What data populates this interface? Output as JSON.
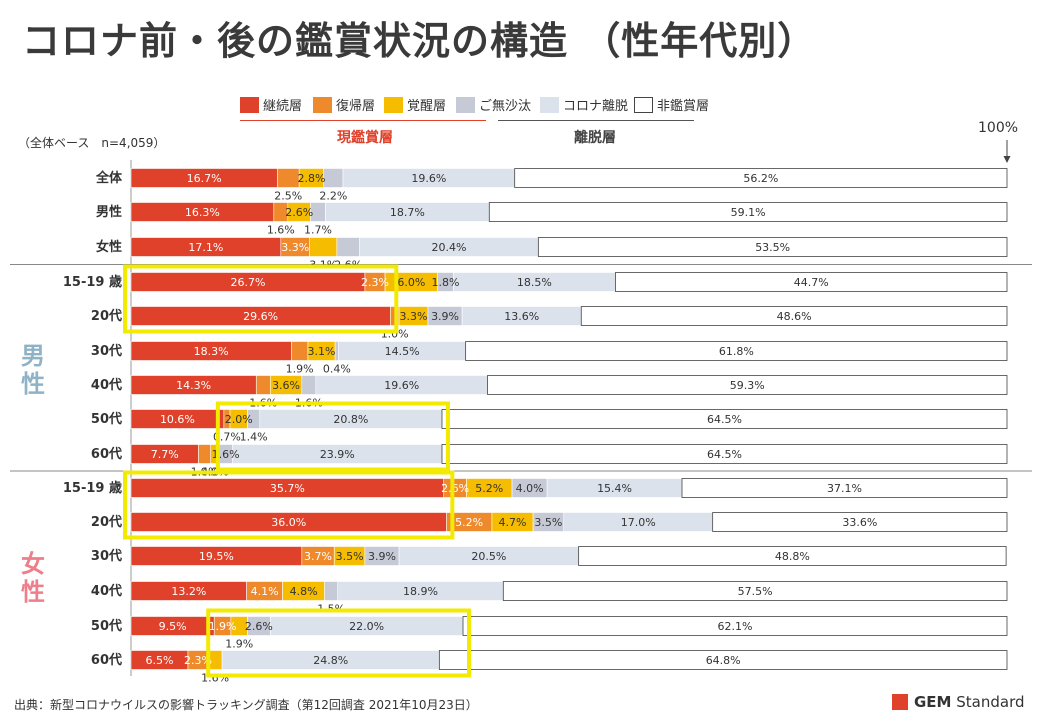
{
  "title": "コロナ前・後の鑑賞状況の構造 （性年代別）",
  "base_note": "（全体ベース　n=4,059）",
  "pct_100": "100%",
  "source": "出典：新型コロナウイルスの影響トラッキング調査（第12回調査 2021年10月23日）",
  "logo": {
    "mark": "GEM",
    "text": "Standard"
  },
  "gender_labels": {
    "male": "男性",
    "female": "女性"
  },
  "group_labels": {
    "current": "現鑑賞層",
    "departed": "離脱層"
  },
  "colors": {
    "継続層": "#e0412a",
    "復帰層": "#ee8a2c",
    "覚醒層": "#f5bc00",
    "ご無沙汰": "#c5cad6",
    "コロナ離脱": "#dbe2ec",
    "非鑑賞層": "#ffffff",
    "highlight": "#f2ea00"
  },
  "chart_data": {
    "type": "bar",
    "orientation": "horizontal",
    "stacked": true,
    "xlim": [
      0,
      100
    ],
    "unit": "%",
    "categories": [
      "全体",
      "男性",
      "女性",
      "15-19 歳",
      "20代",
      "30代",
      "40代",
      "50代",
      "60代",
      "15-19 歳",
      "20代",
      "30代",
      "40代",
      "50代",
      "60代"
    ],
    "series": [
      {
        "name": "継続層",
        "values": [
          16.7,
          16.3,
          17.1,
          26.7,
          29.6,
          18.3,
          14.3,
          10.6,
          7.7,
          35.7,
          36.0,
          19.5,
          13.2,
          9.5,
          6.5
        ]
      },
      {
        "name": "復帰層",
        "values": [
          2.5,
          1.6,
          3.3,
          2.3,
          1.0,
          1.9,
          1.6,
          0.7,
          1.4,
          2.6,
          5.2,
          3.7,
          4.1,
          1.9,
          2.3
        ]
      },
      {
        "name": "覚醒層",
        "values": [
          2.8,
          2.6,
          3.1,
          6.0,
          3.3,
          3.1,
          3.6,
          2.0,
          0.9,
          5.2,
          4.7,
          3.5,
          4.8,
          1.9,
          1.6
        ]
      },
      {
        "name": "ご無沙汰",
        "values": [
          2.2,
          1.7,
          2.6,
          1.8,
          3.9,
          0.4,
          1.6,
          1.4,
          1.6,
          4.0,
          3.5,
          3.9,
          1.5,
          2.6,
          0.0
        ]
      },
      {
        "name": "コロナ離脱",
        "values": [
          19.6,
          18.7,
          20.4,
          18.5,
          13.6,
          14.5,
          19.6,
          20.8,
          23.9,
          15.4,
          17.0,
          20.5,
          18.9,
          22.0,
          24.8
        ]
      },
      {
        "name": "非鑑賞層",
        "values": [
          56.2,
          59.1,
          53.5,
          44.7,
          48.6,
          61.8,
          59.3,
          64.5,
          64.5,
          37.1,
          33.6,
          48.8,
          57.5,
          62.1,
          64.8
        ]
      }
    ],
    "legend": [
      "継続層",
      "復帰層",
      "覚醒層",
      "ご無沙汰",
      "コロナ離脱",
      "非鑑賞層"
    ],
    "legend_position": "top",
    "labels": [
      {
        "row": 0,
        "series": 0,
        "text": "16.7%",
        "place": "in"
      },
      {
        "row": 0,
        "series": 1,
        "text": "2.5%",
        "place": "below"
      },
      {
        "row": 0,
        "series": 2,
        "text": "2.8%",
        "place": "in"
      },
      {
        "row": 0,
        "series": 3,
        "text": "2.2%",
        "place": "below"
      },
      {
        "row": 0,
        "series": 4,
        "text": "19.6%",
        "place": "in"
      },
      {
        "row": 0,
        "series": 5,
        "text": "56.2%",
        "place": "in"
      },
      {
        "row": 1,
        "series": 0,
        "text": "16.3%",
        "place": "in"
      },
      {
        "row": 1,
        "series": 1,
        "text": "1.6%",
        "place": "below"
      },
      {
        "row": 1,
        "series": 2,
        "text": "2.6%",
        "place": "in"
      },
      {
        "row": 1,
        "series": 3,
        "text": "1.7%",
        "place": "below"
      },
      {
        "row": 1,
        "series": 4,
        "text": "18.7%",
        "place": "in"
      },
      {
        "row": 1,
        "series": 5,
        "text": "59.1%",
        "place": "in"
      },
      {
        "row": 2,
        "series": 0,
        "text": "17.1%",
        "place": "in"
      },
      {
        "row": 2,
        "series": 1,
        "text": "3.3%",
        "place": "in"
      },
      {
        "row": 2,
        "series": 2,
        "text": "3.1%",
        "place": "below"
      },
      {
        "row": 2,
        "series": 3,
        "text": "2.6%",
        "place": "below"
      },
      {
        "row": 2,
        "series": 4,
        "text": "20.4%",
        "place": "in"
      },
      {
        "row": 2,
        "series": 5,
        "text": "53.5%",
        "place": "in"
      },
      {
        "row": 3,
        "series": 0,
        "text": "26.7%",
        "place": "in"
      },
      {
        "row": 3,
        "series": 1,
        "text": "2.3%",
        "place": "in"
      },
      {
        "row": 3,
        "series": 2,
        "text": "6.0%",
        "place": "in"
      },
      {
        "row": 3,
        "series": 3,
        "text": "1.8%",
        "place": "in"
      },
      {
        "row": 3,
        "series": 4,
        "text": "18.5%",
        "place": "in"
      },
      {
        "row": 3,
        "series": 5,
        "text": "44.7%",
        "place": "in"
      },
      {
        "row": 4,
        "series": 0,
        "text": "29.6%",
        "place": "in"
      },
      {
        "row": 4,
        "series": 1,
        "text": "1.0%",
        "place": "below"
      },
      {
        "row": 4,
        "series": 2,
        "text": "3.3%",
        "place": "in"
      },
      {
        "row": 4,
        "series": 3,
        "text": "3.9%",
        "place": "in"
      },
      {
        "row": 4,
        "series": 4,
        "text": "13.6%",
        "place": "in"
      },
      {
        "row": 4,
        "series": 5,
        "text": "48.6%",
        "place": "in"
      },
      {
        "row": 5,
        "series": 0,
        "text": "18.3%",
        "place": "in"
      },
      {
        "row": 5,
        "series": 1,
        "text": "1.9%",
        "place": "below"
      },
      {
        "row": 5,
        "series": 2,
        "text": "3.1%",
        "place": "in"
      },
      {
        "row": 5,
        "series": 3,
        "text": "0.4%",
        "place": "below"
      },
      {
        "row": 5,
        "series": 4,
        "text": "14.5%",
        "place": "in"
      },
      {
        "row": 5,
        "series": 5,
        "text": "61.8%",
        "place": "in"
      },
      {
        "row": 6,
        "series": 0,
        "text": "14.3%",
        "place": "in"
      },
      {
        "row": 6,
        "series": 1,
        "text": "1.6%",
        "place": "below"
      },
      {
        "row": 6,
        "series": 2,
        "text": "3.6%",
        "place": "in"
      },
      {
        "row": 6,
        "series": 3,
        "text": "1.6%",
        "place": "below"
      },
      {
        "row": 6,
        "series": 4,
        "text": "19.6%",
        "place": "in"
      },
      {
        "row": 6,
        "series": 5,
        "text": "59.3%",
        "place": "in"
      },
      {
        "row": 7,
        "series": 0,
        "text": "10.6%",
        "place": "in"
      },
      {
        "row": 7,
        "series": 1,
        "text": "0.7%",
        "place": "below"
      },
      {
        "row": 7,
        "series": 2,
        "text": "2.0%",
        "place": "in"
      },
      {
        "row": 7,
        "series": 3,
        "text": "1.4%",
        "place": "below"
      },
      {
        "row": 7,
        "series": 4,
        "text": "20.8%",
        "place": "in"
      },
      {
        "row": 7,
        "series": 5,
        "text": "64.5%",
        "place": "in"
      },
      {
        "row": 8,
        "series": 0,
        "text": "7.7%",
        "place": "in"
      },
      {
        "row": 8,
        "series": 1,
        "text": "1.4%",
        "place": "below"
      },
      {
        "row": 8,
        "series": 2,
        "text": "0.9%",
        "place": "below"
      },
      {
        "row": 8,
        "series": 3,
        "text": "1.6%",
        "place": "in"
      },
      {
        "row": 8,
        "series": 4,
        "text": "23.9%",
        "place": "in"
      },
      {
        "row": 8,
        "series": 5,
        "text": "64.5%",
        "place": "in"
      },
      {
        "row": 9,
        "series": 0,
        "text": "35.7%",
        "place": "in"
      },
      {
        "row": 9,
        "series": 1,
        "text": "2.6%",
        "place": "in"
      },
      {
        "row": 9,
        "series": 2,
        "text": "5.2%",
        "place": "in"
      },
      {
        "row": 9,
        "series": 3,
        "text": "4.0%",
        "place": "in"
      },
      {
        "row": 9,
        "series": 4,
        "text": "15.4%",
        "place": "in"
      },
      {
        "row": 9,
        "series": 5,
        "text": "37.1%",
        "place": "in"
      },
      {
        "row": 10,
        "series": 0,
        "text": "36.0%",
        "place": "in"
      },
      {
        "row": 10,
        "series": 1,
        "text": "5.2%",
        "place": "in"
      },
      {
        "row": 10,
        "series": 2,
        "text": "4.7%",
        "place": "in"
      },
      {
        "row": 10,
        "series": 3,
        "text": "3.5%",
        "place": "in"
      },
      {
        "row": 10,
        "series": 4,
        "text": "17.0%",
        "place": "in"
      },
      {
        "row": 10,
        "series": 5,
        "text": "33.6%",
        "place": "in"
      },
      {
        "row": 11,
        "series": 0,
        "text": "19.5%",
        "place": "in"
      },
      {
        "row": 11,
        "series": 1,
        "text": "3.7%",
        "place": "in"
      },
      {
        "row": 11,
        "series": 2,
        "text": "3.5%",
        "place": "in"
      },
      {
        "row": 11,
        "series": 3,
        "text": "3.9%",
        "place": "in"
      },
      {
        "row": 11,
        "series": 4,
        "text": "20.5%",
        "place": "in"
      },
      {
        "row": 11,
        "series": 5,
        "text": "48.8%",
        "place": "in"
      },
      {
        "row": 12,
        "series": 0,
        "text": "13.2%",
        "place": "in"
      },
      {
        "row": 12,
        "series": 1,
        "text": "4.1%",
        "place": "in"
      },
      {
        "row": 12,
        "series": 2,
        "text": "4.8%",
        "place": "in"
      },
      {
        "row": 12,
        "series": 3,
        "text": "1.5%",
        "place": "below"
      },
      {
        "row": 12,
        "series": 4,
        "text": "18.9%",
        "place": "in"
      },
      {
        "row": 12,
        "series": 5,
        "text": "57.5%",
        "place": "in"
      },
      {
        "row": 13,
        "series": 0,
        "text": "9.5%",
        "place": "in"
      },
      {
        "row": 13,
        "series": 1,
        "text": "1.9%",
        "place": "in"
      },
      {
        "row": 13,
        "series": 2,
        "text": "1.9%",
        "place": "below"
      },
      {
        "row": 13,
        "series": 3,
        "text": "2.6%",
        "place": "in"
      },
      {
        "row": 13,
        "series": 4,
        "text": "22.0%",
        "place": "in"
      },
      {
        "row": 13,
        "series": 5,
        "text": "62.1%",
        "place": "in"
      },
      {
        "row": 14,
        "series": 0,
        "text": "6.5%",
        "place": "in"
      },
      {
        "row": 14,
        "series": 1,
        "text": "2.3%",
        "place": "in"
      },
      {
        "row": 14,
        "series": 2,
        "text": "1.6%",
        "place": "below"
      },
      {
        "row": 14,
        "series": 4,
        "text": "24.8%",
        "place": "in"
      },
      {
        "row": 14,
        "series": 5,
        "text": "64.8%",
        "place": "in"
      }
    ],
    "highlights": [
      {
        "rows": [
          3,
          4
        ],
        "from_series": 0,
        "to_series": 0
      },
      {
        "rows": [
          7,
          8
        ],
        "from_series": 1,
        "to_series": 4
      },
      {
        "rows": [
          9,
          10
        ],
        "from_series": 0,
        "to_series": 0
      },
      {
        "rows": [
          13,
          14
        ],
        "from_series": 1,
        "to_series": 4
      }
    ],
    "separators_after_rows": [
      2,
      8
    ]
  }
}
